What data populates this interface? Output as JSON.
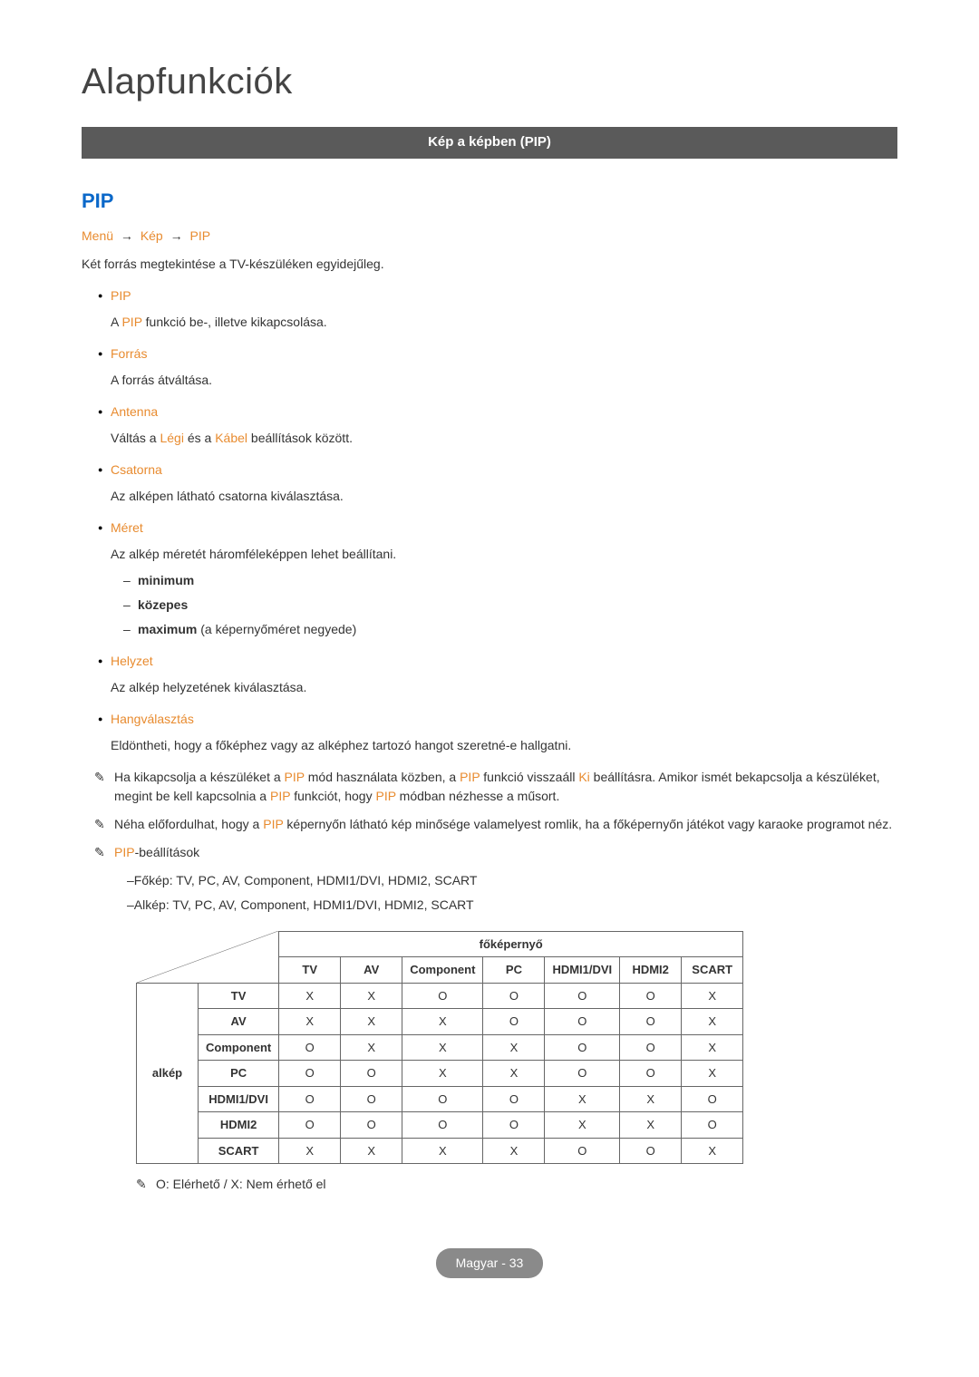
{
  "page": {
    "title": "Alapfunkciók",
    "section_bar": "Kép a képben (PIP)",
    "sub_heading": "PIP",
    "breadcrumb": {
      "p1": "Menü",
      "p2": "Kép",
      "p3": "PIP",
      "sep": "→"
    },
    "intro": "Két forrás megtekintése a TV-készüléken egyidejűleg.",
    "footer": "Magyar - 33"
  },
  "colors": {
    "accent_blue": "#0b68c9",
    "accent_orange": "#e88b2f",
    "bar_bg": "#5a5a5a",
    "text": "#333333"
  },
  "items": [
    {
      "label": "PIP",
      "desc_before": "A ",
      "desc_colored": "PIP",
      "desc_after": " funkció be-, illetve kikapcsolása."
    },
    {
      "label": "Forrás",
      "desc_plain": "A forrás átváltása."
    },
    {
      "label": "Antenna",
      "desc_parts": [
        "Váltás a ",
        "Légi",
        " és a ",
        "Kábel",
        " beállítások között."
      ]
    },
    {
      "label": "Csatorna",
      "desc_plain": "Az alképen látható csatorna kiválasztása."
    },
    {
      "label": "Méret",
      "desc_plain": "Az alkép méretét háromféleképpen lehet beállítani.",
      "sublist": [
        {
          "bold": "minimum",
          "rest": ""
        },
        {
          "bold": "közepes",
          "rest": ""
        },
        {
          "bold": "maximum",
          "rest": " (a képernyőméret negyede)"
        }
      ]
    },
    {
      "label": "Helyzet",
      "desc_plain": "Az alkép helyzetének kiválasztása."
    },
    {
      "label": "Hangválasztás",
      "desc_plain": "Eldöntheti, hogy a főképhez vagy az alképhez tartozó hangot szeretné-e hallgatni."
    }
  ],
  "notes": {
    "icon": "✎",
    "n1_parts": [
      "Ha kikapcsolja a készüléket a ",
      "PIP",
      " mód használata közben, a ",
      "PIP",
      " funkció visszaáll ",
      "Ki",
      " beállításra. Amikor ismét bekapcsolja a készüléket, megint be kell kapcsolnia a ",
      "PIP",
      " funkciót, hogy ",
      "PIP",
      " módban nézhesse a műsort."
    ],
    "n2_parts": [
      "Néha előfordulhat, hogy a ",
      "PIP",
      " képernyőn látható kép minősége valamelyest romlik, ha a főképernyőn játékot vagy karaoke programot néz."
    ],
    "n3_label": "PIP",
    "n3_rest": "-beállítások",
    "settings": [
      "Főkép: TV, PC, AV, Component, HDMI1/DVI, HDMI2, SCART",
      "Alkép: TV, PC, AV, Component, HDMI1/DVI, HDMI2, SCART"
    ],
    "legend": "O: Elérhető / X: Nem érhető el"
  },
  "table": {
    "top_header": "főképernyő",
    "side_header": "alkép",
    "columns": [
      "TV",
      "AV",
      "Component",
      "PC",
      "HDMI1/DVI",
      "HDMI2",
      "SCART"
    ],
    "rows": [
      {
        "label": "TV",
        "cells": [
          "X",
          "X",
          "O",
          "O",
          "O",
          "O",
          "X"
        ]
      },
      {
        "label": "AV",
        "cells": [
          "X",
          "X",
          "X",
          "O",
          "O",
          "O",
          "X"
        ]
      },
      {
        "label": "Component",
        "cells": [
          "O",
          "X",
          "X",
          "X",
          "O",
          "O",
          "X"
        ]
      },
      {
        "label": "PC",
        "cells": [
          "O",
          "O",
          "X",
          "X",
          "O",
          "O",
          "X"
        ]
      },
      {
        "label": "HDMI1/DVI",
        "cells": [
          "O",
          "O",
          "O",
          "O",
          "X",
          "X",
          "O"
        ]
      },
      {
        "label": "HDMI2",
        "cells": [
          "O",
          "O",
          "O",
          "O",
          "X",
          "X",
          "O"
        ]
      },
      {
        "label": "SCART",
        "cells": [
          "X",
          "X",
          "X",
          "X",
          "O",
          "O",
          "X"
        ]
      }
    ]
  }
}
